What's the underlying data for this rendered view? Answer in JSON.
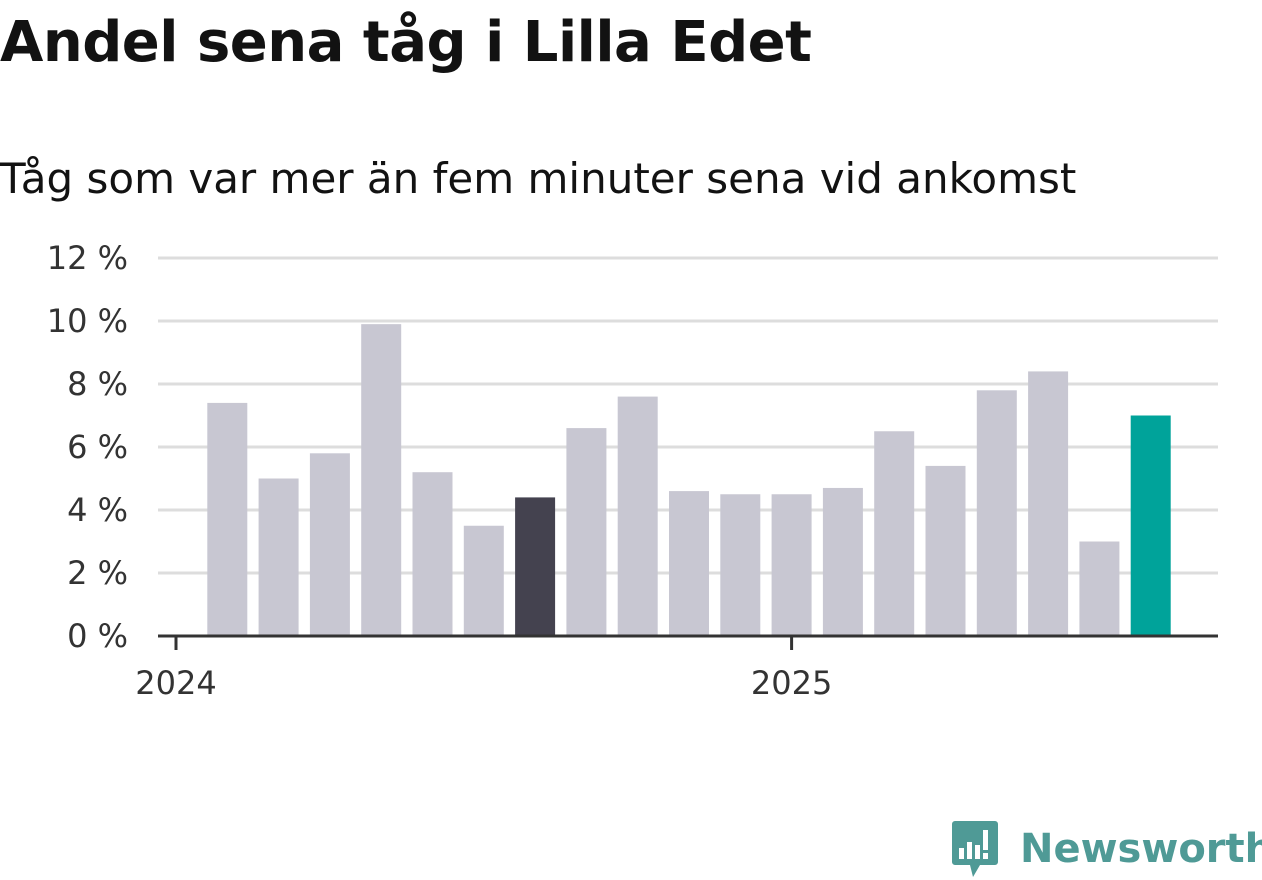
{
  "title": "Andel sena tåg i Lilla Edet",
  "subtitle": "Tåg som var mer än fem minuter sena vid ankomst",
  "brand": {
    "name": "Newsworthy",
    "color": "#4f9a96",
    "icon": "chart-speech-bubble-icon"
  },
  "chart_data": {
    "type": "bar",
    "title": "Andel sena tåg i Lilla Edet",
    "subtitle": "Tåg som var mer än fem minuter sena vid ankomst",
    "xlabel": "",
    "ylabel": "",
    "ylim": [
      0,
      12
    ],
    "yticks": [
      0,
      2,
      4,
      6,
      8,
      10,
      12
    ],
    "ytick_suffix": " %",
    "xtick_labels": [
      {
        "label": "2024",
        "index": 0
      },
      {
        "label": "2025",
        "index": 12
      }
    ],
    "grid": true,
    "categories": [
      "2024-01",
      "2024-02",
      "2024-03",
      "2024-04",
      "2024-05",
      "2024-06",
      "2024-07",
      "2024-08",
      "2024-09",
      "2024-10",
      "2024-11",
      "2024-12",
      "2025-01",
      "2025-02",
      "2025-03",
      "2025-04",
      "2025-05",
      "2025-06",
      "2025-07",
      "2025-08"
    ],
    "values": [
      null,
      7.4,
      5.0,
      5.8,
      9.9,
      5.2,
      3.5,
      4.4,
      6.6,
      7.6,
      4.6,
      4.5,
      4.5,
      4.7,
      6.5,
      5.4,
      7.8,
      8.4,
      3.0,
      7.0
    ],
    "colors": {
      "default": "#c8c7d2",
      "highlight_dark": "#44424f",
      "highlight_latest": "#00a39a",
      "grid": "#dddddd",
      "axis": "#333333"
    },
    "highlight_dark_index": 7,
    "highlight_latest_index": 19
  }
}
